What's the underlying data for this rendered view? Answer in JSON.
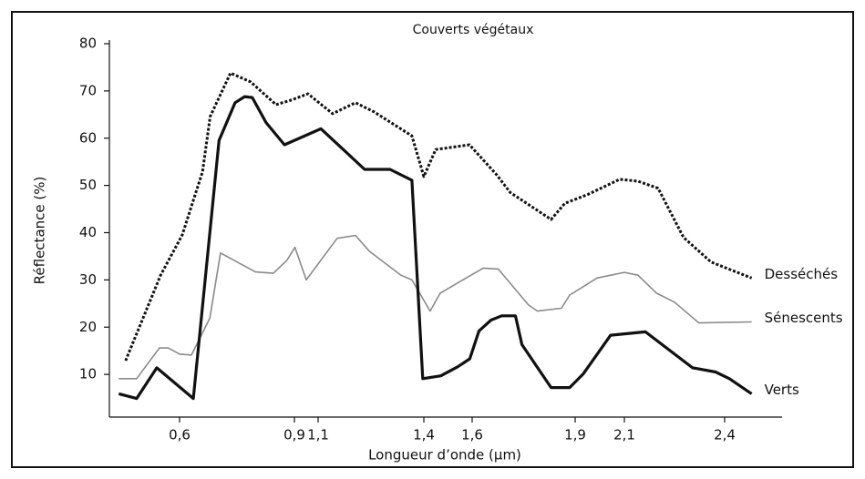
{
  "chart_data": {
    "type": "line",
    "title": "Couverts végétaux",
    "x_label": "Longueur d’onde (µm)",
    "y_label": "Réflectance (%)",
    "xlim": [
      0.42,
      2.5
    ],
    "ylim": [
      0,
      80
    ],
    "xticks": [
      {
        "value": 0.6,
        "label": "0,6"
      },
      {
        "value": 0.9,
        "label": "0,9"
      },
      {
        "value": 1.1,
        "label": "1,1"
      },
      {
        "value": 1.4,
        "label": "1,4"
      },
      {
        "value": 1.6,
        "label": "1,6"
      },
      {
        "value": 1.9,
        "label": "1,9"
      },
      {
        "value": 2.1,
        "label": "2,1"
      },
      {
        "value": 2.4,
        "label": "2,4"
      }
    ],
    "yticks": [
      10,
      20,
      30,
      40,
      50,
      60,
      70,
      80
    ],
    "grid": false,
    "series": [
      {
        "name": "Desséchés",
        "color": "#111111",
        "style": "dotted",
        "x": [
          0.458,
          0.55,
          0.607,
          0.66,
          0.68,
          0.733,
          0.786,
          0.852,
          0.893,
          1.015,
          1.141,
          1.206,
          1.258,
          1.366,
          1.4,
          1.449,
          1.589,
          1.671,
          1.711,
          1.83,
          1.87,
          1.952,
          2.081,
          2.141,
          2.201,
          2.277,
          2.359,
          2.48
        ],
        "values": [
          12.9,
          31,
          39.5,
          52.9,
          64.6,
          73.8,
          71.9,
          67.1,
          68.1,
          69.4,
          65.2,
          67.5,
          65.6,
          60.5,
          51.9,
          57.6,
          58.6,
          52.3,
          48.5,
          42.8,
          46.2,
          48.1,
          51.3,
          50.9,
          49.4,
          39,
          33.8,
          30.4
        ]
      },
      {
        "name": "Sénescents",
        "color": "#8a8a8a",
        "style": "thin",
        "x": [
          0.44,
          0.487,
          0.547,
          0.57,
          0.6,
          0.631,
          0.679,
          0.707,
          0.798,
          0.845,
          0.881,
          0.905,
          1.0,
          1.154,
          1.206,
          1.245,
          1.335,
          1.366,
          1.426,
          1.468,
          1.632,
          1.676,
          1.764,
          1.79,
          1.86,
          1.884,
          1.989,
          2.1,
          2.141,
          2.196,
          2.25,
          2.323,
          2.48
        ],
        "values": [
          9.1,
          9.1,
          15.6,
          15.6,
          14.3,
          14.1,
          21.9,
          35.7,
          31.7,
          31.4,
          34.2,
          36.9,
          30,
          38.8,
          39.4,
          36.1,
          31,
          30,
          23.4,
          27.2,
          32.5,
          32.3,
          24.7,
          23.4,
          24,
          26.8,
          30.4,
          31.6,
          31,
          27.2,
          25.3,
          20.9,
          21.1
        ]
      },
      {
        "name": "Verts",
        "color": "#111111",
        "style": "thick",
        "x": [
          0.44,
          0.487,
          0.54,
          0.636,
          0.703,
          0.745,
          0.77,
          0.79,
          0.826,
          0.874,
          1.108,
          1.232,
          1.304,
          1.366,
          1.397,
          1.47,
          1.54,
          1.59,
          1.62,
          1.655,
          1.686,
          1.726,
          1.745,
          1.83,
          1.884,
          1.933,
          2.044,
          2.163,
          2.304,
          2.373,
          2.414,
          2.48
        ],
        "values": [
          5.9,
          4.9,
          11.4,
          4.9,
          59.5,
          67.5,
          68.8,
          68.6,
          63.3,
          58.6,
          62,
          53.4,
          53.4,
          51.1,
          9.1,
          9.7,
          11.6,
          13.3,
          19.2,
          21.5,
          22.4,
          22.4,
          16.3,
          7.2,
          7.2,
          10.1,
          18.3,
          19,
          11.4,
          10.5,
          9.1,
          5.9
        ]
      }
    ]
  }
}
